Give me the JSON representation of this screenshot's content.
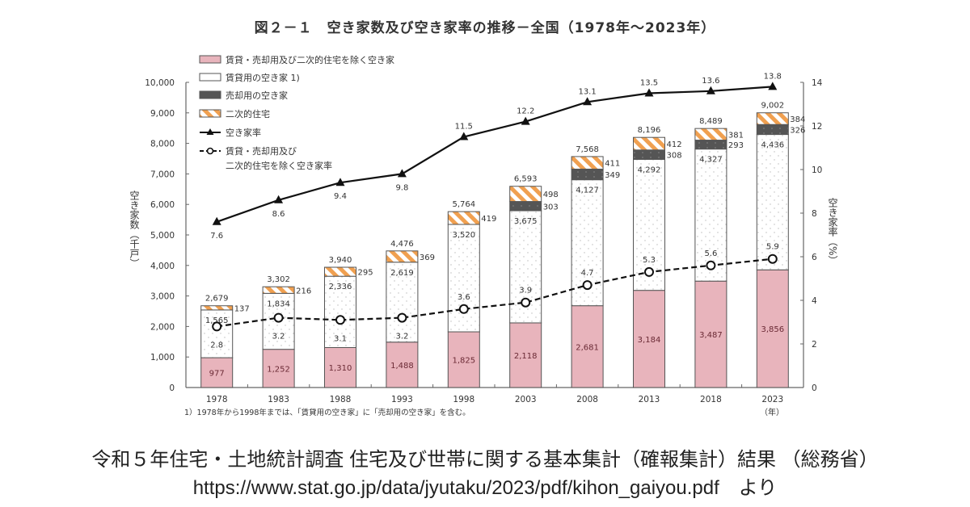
{
  "chart_data": {
    "type": "bar",
    "stacked": true,
    "title": "図２－１　空き家数及び空き家率の推移－全国（1978年～2023年）",
    "categories": [
      "1978",
      "1983",
      "1988",
      "1993",
      "1998",
      "2003",
      "2008",
      "2013",
      "2018",
      "2023"
    ],
    "xlabel": "（年）",
    "ylabel_left": "空き家数（千戸）",
    "ylabel_right": "空き家率（%）",
    "ylim_left": [
      0,
      10000
    ],
    "ylim_right": [
      0,
      14
    ],
    "yticks_left": [
      "0",
      "1,000",
      "2,000",
      "3,000",
      "4,000",
      "5,000",
      "6,000",
      "7,000",
      "8,000",
      "9,000",
      "10,000"
    ],
    "yticks_right": [
      "0",
      "2",
      "4",
      "6",
      "8",
      "10",
      "12",
      "14"
    ],
    "grid": false,
    "legend_position": "top-left",
    "series": [
      {
        "name": "賃貸・売却用及び二次的住宅を除く空き家",
        "kind": "bar",
        "color": "#e8b4bc",
        "values": [
          977,
          1252,
          1310,
          1488,
          1825,
          2118,
          2681,
          3184,
          3487,
          3856
        ],
        "labels": [
          "977",
          "1,252",
          "1,310",
          "1,488",
          "1,825",
          "2,118",
          "2,681",
          "3,184",
          "3,487",
          "3,856"
        ]
      },
      {
        "name": "賃貸用の空き家 1)",
        "kind": "bar",
        "color": "#ffffff",
        "values": [
          1565,
          1834,
          2336,
          2619,
          3520,
          3675,
          4127,
          4292,
          4327,
          4436
        ],
        "labels": [
          "1,565",
          "1,834",
          "2,336",
          "2,619",
          "3,520",
          "3,675",
          "4,127",
          "4,292",
          "4,327",
          "4,436"
        ]
      },
      {
        "name": "売却用の空き家",
        "kind": "bar",
        "color": "#555555",
        "values": [
          null,
          null,
          null,
          null,
          null,
          303,
          349,
          308,
          293,
          326
        ],
        "labels": [
          "",
          "",
          "",
          "",
          "",
          "303",
          "349",
          "308",
          "293",
          "326"
        ]
      },
      {
        "name": "二次的住宅",
        "kind": "bar",
        "color": "#f0a050",
        "values": [
          137,
          216,
          295,
          369,
          419,
          498,
          411,
          412,
          381,
          384
        ],
        "labels": [
          "137",
          "216",
          "295",
          "369",
          "419",
          "498",
          "411",
          "412",
          "381",
          "384"
        ]
      },
      {
        "name": "空き家率",
        "kind": "line",
        "axis": "right",
        "color": "#111111",
        "values": [
          7.6,
          8.6,
          9.4,
          9.8,
          11.5,
          12.2,
          13.1,
          13.5,
          13.6,
          13.8
        ],
        "labels": [
          "7.6",
          "8.6",
          "9.4",
          "9.8",
          "11.5",
          "12.2",
          "13.1",
          "13.5",
          "13.6",
          "13.8"
        ]
      },
      {
        "name": "賃貸・売却用及び\n二次的住宅を除く空き家率",
        "kind": "line-dashed",
        "axis": "right",
        "color": "#111111",
        "values": [
          2.8,
          3.2,
          3.1,
          3.2,
          3.6,
          3.9,
          4.7,
          5.3,
          5.6,
          5.9
        ],
        "labels": [
          "2.8",
          "3.2",
          "3.1",
          "3.2",
          "3.6",
          "3.9",
          "4.7",
          "5.3",
          "5.6",
          "5.9"
        ]
      }
    ],
    "totals": [
      2679,
      3302,
      3940,
      4476,
      5764,
      6593,
      7568,
      8196,
      8489,
      9002
    ],
    "total_labels": [
      "2,679",
      "3,302",
      "3,940",
      "4,476",
      "5,764",
      "6,593",
      "7,568",
      "8,196",
      "8,489",
      "9,002"
    ],
    "legend": [
      "賃貸・売却用及び二次的住宅を除く空き家",
      "賃貸用の空き家 1)",
      "売却用の空き家",
      "二次的住宅",
      "空き家率",
      "賃貸・売却用及び",
      "二次的住宅を除く空き家率"
    ],
    "footnote": "1）1978年から1998年までは、「賃貸用の空き家」に「売却用の空き家」を含む。"
  },
  "source": {
    "line1": "令和５年住宅・土地統計調査 住宅及び世帯に関する基本集計（確報集計）結果 （総務省）",
    "line2": "https://www.stat.go.jp/data/jyutaku/2023/pdf/kihon_gaiyou.pdf　より"
  }
}
